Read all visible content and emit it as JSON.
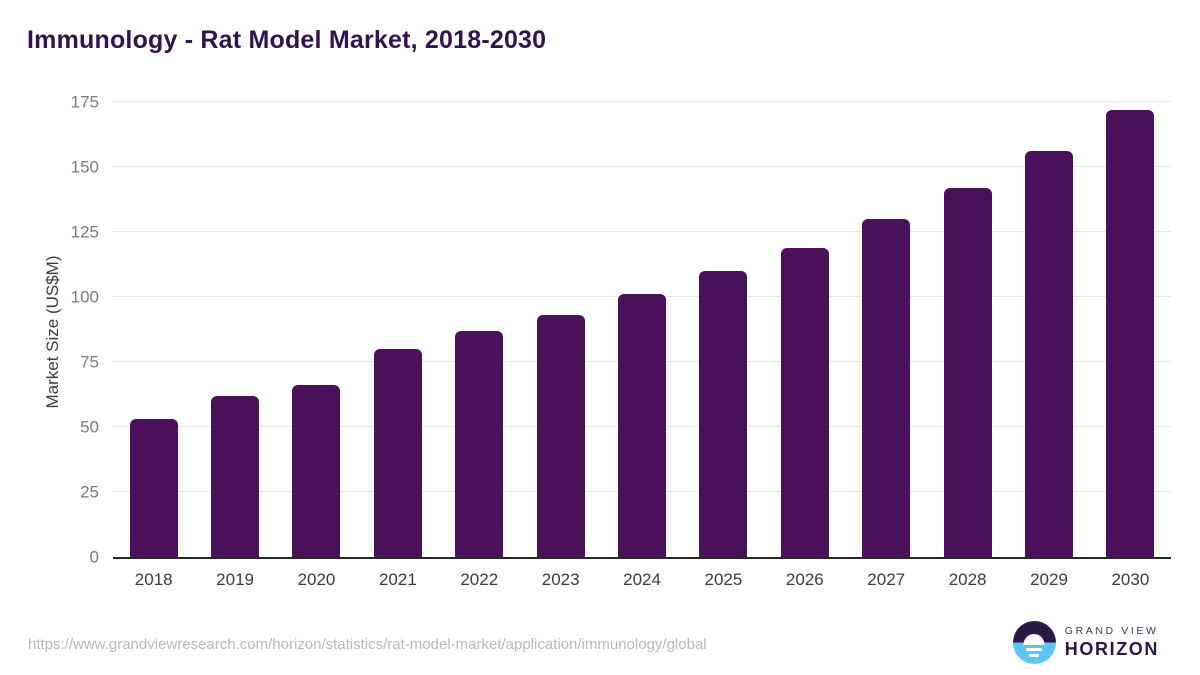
{
  "title": "Immunology - Rat Model Market, 2018-2030",
  "chart_data": {
    "type": "bar",
    "title": "Immunology - Rat Model Market, 2018-2030",
    "categories": [
      "2018",
      "2019",
      "2020",
      "2021",
      "2022",
      "2023",
      "2024",
      "2025",
      "2026",
      "2027",
      "2028",
      "2029",
      "2030"
    ],
    "values": [
      53,
      62,
      66,
      80,
      87,
      93,
      101,
      110,
      119,
      130,
      142,
      156,
      172
    ],
    "xlabel": "",
    "ylabel": "Market Size (US$M)",
    "ylim": [
      0,
      175
    ],
    "ytick_step": 25,
    "yticks": [
      0,
      25,
      50,
      75,
      100,
      125,
      150,
      175
    ],
    "grid": true,
    "legend": "none",
    "bar_color": "#4a115a"
  },
  "footer": {
    "source_url": "https://www.grandviewresearch.com/horizon/statistics/rat-model-market/application/immunology/global",
    "logo": {
      "line1": "GRAND VIEW",
      "line2": "HORIZON"
    }
  },
  "colors": {
    "title": "#35124f",
    "bar": "#4a115a",
    "axis_line": "#262626",
    "gridline": "#e7e7e7",
    "tick_label": "#7b7b7b",
    "x_label": "#3c3c3c",
    "url_text": "#b9b9b9",
    "logo_dark": "#2a1846",
    "logo_blue": "#5bc6f2"
  }
}
